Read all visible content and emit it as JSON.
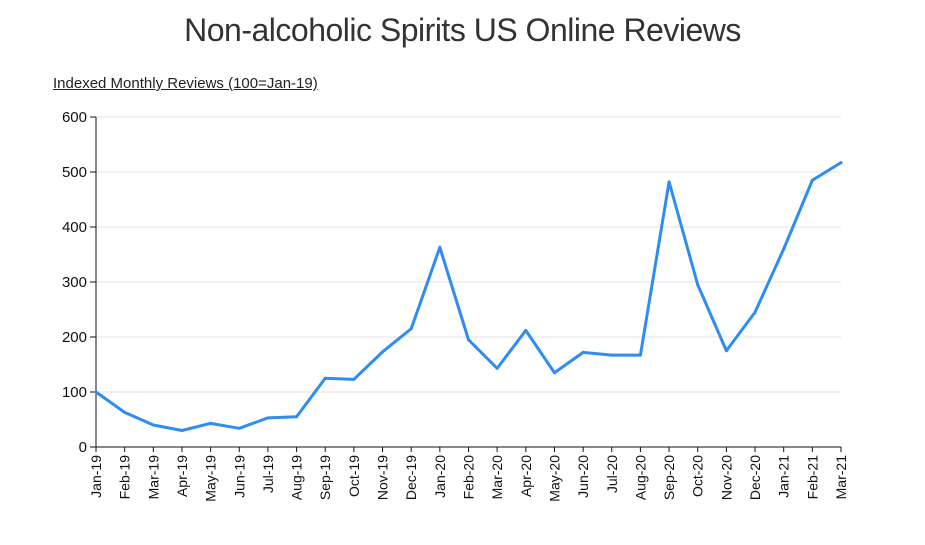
{
  "chart_data": {
    "type": "line",
    "title": "Non-alcoholic Spirits US Online Reviews",
    "subtitle": "Indexed Monthly Reviews (100=Jan-19)",
    "xlabel": "",
    "ylabel": "",
    "ylim": [
      0,
      600
    ],
    "yticks": [
      0,
      100,
      200,
      300,
      400,
      500,
      600
    ],
    "grid": true,
    "legend": "none",
    "line_color": "#2f8cf0",
    "categories": [
      "Jan-19",
      "Feb-19",
      "Mar-19",
      "Apr-19",
      "May-19",
      "Jun-19",
      "Jul-19",
      "Aug-19",
      "Sep-19",
      "Oct-19",
      "Nov-19",
      "Dec-19",
      "Jan-20",
      "Feb-20",
      "Mar-20",
      "Apr-20",
      "May-20",
      "Jun-20",
      "Jul-20",
      "Aug-20",
      "Sep-20",
      "Oct-20",
      "Nov-20",
      "Dec-20",
      "Jan-21",
      "Feb-21",
      "Mar-21"
    ],
    "series": [
      {
        "values": [
          100,
          63,
          40,
          30,
          43,
          34,
          53,
          55,
          125,
          123,
          173,
          215,
          363,
          195,
          143,
          212,
          135,
          172,
          167,
          167,
          482,
          295,
          175,
          245,
          360,
          485,
          517
        ]
      }
    ]
  }
}
